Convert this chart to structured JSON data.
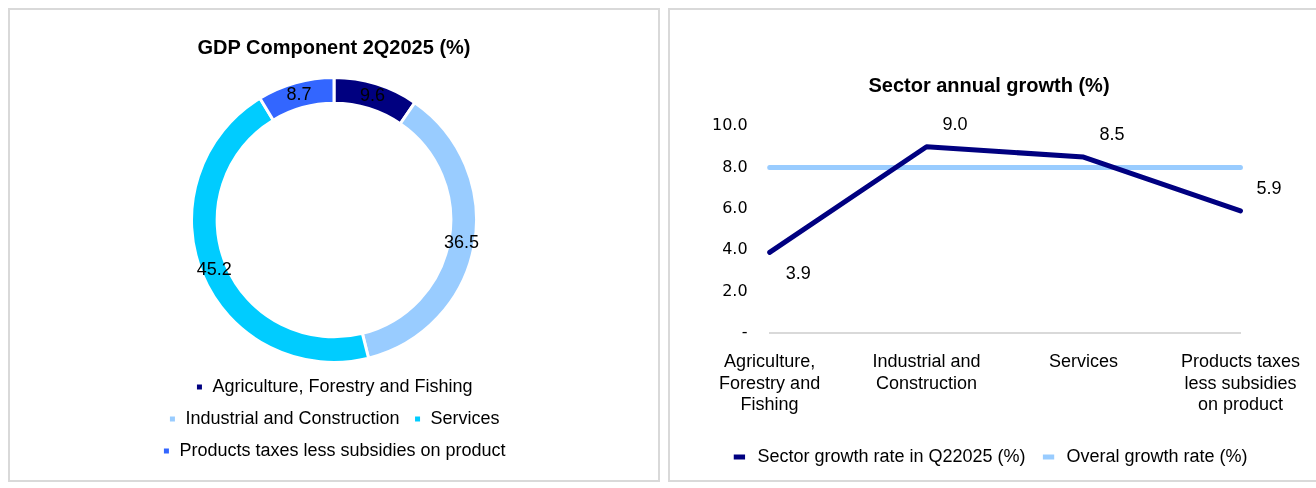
{
  "chart_data": [
    {
      "type": "donut",
      "title": "GDP Component 2Q2025 (%)",
      "categories": [
        "Agriculture, Forestry and Fishing",
        "Industrial and Construction",
        "Services",
        "Products taxes less subsidies on product"
      ],
      "values": [
        9.6,
        36.5,
        45.2,
        8.7
      ],
      "colors": [
        "#000080",
        "#99ccff",
        "#00ccff",
        "#3366ff"
      ],
      "data_labels": true,
      "legend": "bottom"
    },
    {
      "type": "line",
      "title": "Sector annual growth (%)",
      "categories": [
        "Agriculture, Forestry and Fishing",
        "Industrial and Construction",
        "Services",
        "Products taxes less subsidies on product"
      ],
      "series": [
        {
          "name": "Sector growth rate in Q22025 (%)",
          "color": "#000080",
          "values": [
            3.9,
            9.0,
            8.5,
            5.9
          ],
          "value_labels": [
            "3.9",
            "9.0",
            "8.5",
            "5.9"
          ]
        },
        {
          "name": "Overal growth rate (%)",
          "color": "#99ccff",
          "values": [
            8.0,
            8.0,
            8.0,
            8.0
          ]
        }
      ],
      "ylim": [
        0,
        10
      ],
      "yticks": [
        {
          "value": 0,
          "label": "-"
        },
        {
          "value": 2,
          "label": "2.0"
        },
        {
          "value": 4,
          "label": "4.0"
        },
        {
          "value": 6,
          "label": "6.0"
        },
        {
          "value": 8,
          "label": "8.0"
        },
        {
          "value": 10,
          "label": "10.0"
        }
      ],
      "grid": false,
      "legend": "bottom",
      "marker": "none"
    }
  ]
}
